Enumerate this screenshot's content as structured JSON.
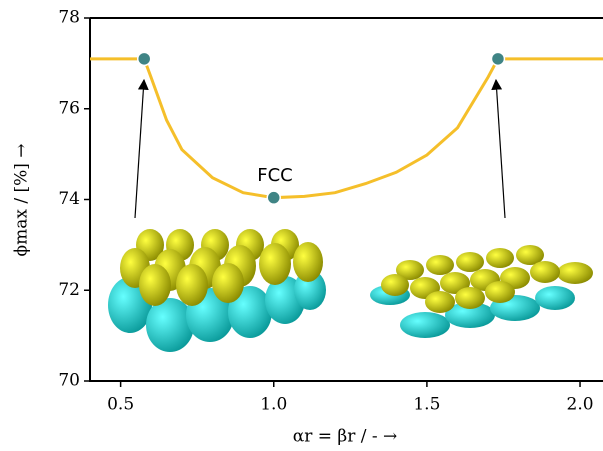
{
  "chart_data": {
    "type": "line",
    "xlabel": "αr = βr / - →",
    "ylabel": "ϕmax / [%] →",
    "annotation": "FCC",
    "xlim": [
      0.4,
      2.075
    ],
    "ylim": [
      70,
      78
    ],
    "xticks": [
      0.5,
      {
        "value": 1,
        "label": "1.0"
      },
      1.5,
      {
        "value": 2,
        "label": "2.0"
      }
    ],
    "yticks": [
      70,
      72,
      74,
      76,
      78
    ],
    "series": [
      {
        "color": "#f5bf2a",
        "x": [
          0.4,
          0.577,
          0.6,
          0.65,
          0.7,
          0.8,
          0.9,
          1.0,
          1.1,
          1.2,
          1.3,
          1.4,
          1.5,
          1.6,
          1.7,
          1.732,
          1.9,
          2.075
        ],
        "values": [
          77.1,
          77.1,
          76.68,
          75.75,
          75.1,
          74.48,
          74.15,
          74.04,
          74.07,
          74.15,
          74.35,
          74.6,
          74.98,
          75.58,
          76.7,
          77.1,
          77.1,
          77.1
        ]
      },
      {
        "color": "#3f8485",
        "marker": true,
        "x": [
          0.577,
          1.0,
          1.732
        ],
        "values": [
          77.1,
          74.04,
          77.1
        ]
      }
    ]
  }
}
